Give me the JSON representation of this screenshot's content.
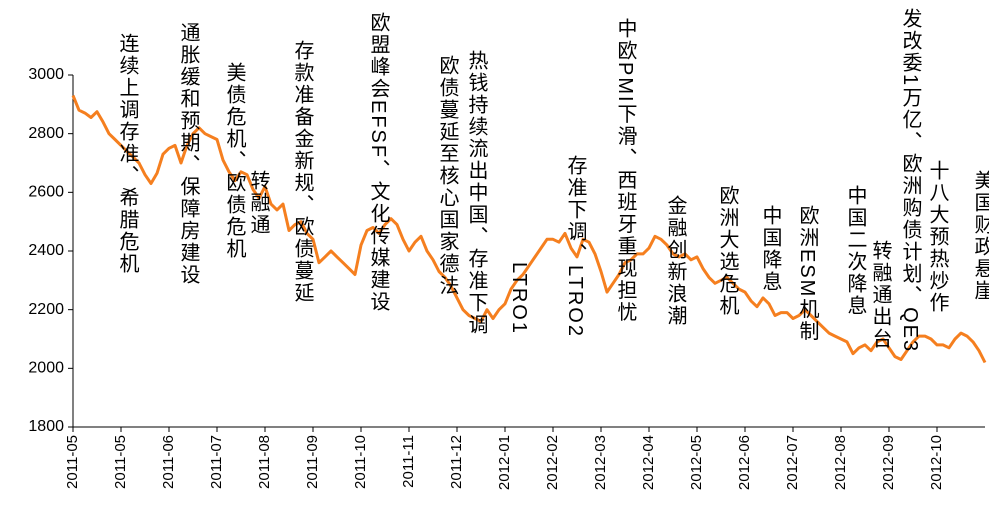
{
  "chart_data": {
    "type": "line",
    "color": "#f57f1f",
    "ylim": [
      1800,
      3000
    ],
    "yticks": [
      1800,
      2000,
      2200,
      2400,
      2600,
      2800,
      3000
    ],
    "categories": [
      "2011-05",
      null,
      null,
      null,
      null,
      null,
      null,
      null,
      "2011-05",
      null,
      null,
      null,
      null,
      null,
      null,
      null,
      "2011-06",
      null,
      null,
      null,
      null,
      null,
      null,
      null,
      "2011-07",
      null,
      null,
      null,
      null,
      null,
      null,
      null,
      "2011-08",
      null,
      null,
      null,
      null,
      null,
      null,
      null,
      "2011-09",
      null,
      null,
      null,
      null,
      null,
      null,
      null,
      "2011-10",
      null,
      null,
      null,
      null,
      null,
      null,
      null,
      "2011-11",
      null,
      null,
      null,
      null,
      null,
      null,
      null,
      "2011-12",
      null,
      null,
      null,
      null,
      null,
      null,
      null,
      "2012-01",
      null,
      null,
      null,
      null,
      null,
      null,
      null,
      "2012-02",
      null,
      null,
      null,
      null,
      null,
      null,
      null,
      "2012-03",
      null,
      null,
      null,
      null,
      null,
      null,
      null,
      "2012-04",
      null,
      null,
      null,
      null,
      null,
      null,
      null,
      "2012-05",
      null,
      null,
      null,
      null,
      null,
      null,
      null,
      "2012-06",
      null,
      null,
      null,
      null,
      null,
      null,
      null,
      "2012-07",
      null,
      null,
      null,
      null,
      null,
      null,
      null,
      "2012-08",
      null,
      null,
      null,
      null,
      null,
      null,
      null,
      "2012-09",
      null,
      null,
      null,
      null,
      null,
      null,
      null,
      "2012-10",
      null,
      null,
      null,
      null,
      null,
      null,
      null,
      null
    ],
    "values": [
      2930,
      2880,
      2870,
      2855,
      2875,
      2840,
      2800,
      2780,
      2760,
      2740,
      2720,
      2700,
      2660,
      2630,
      2665,
      2730,
      2750,
      2760,
      2700,
      2760,
      2800,
      2820,
      2800,
      2790,
      2780,
      2710,
      2670,
      2640,
      2670,
      2660,
      2610,
      2580,
      2620,
      2560,
      2540,
      2560,
      2470,
      2490,
      2500,
      2460,
      2440,
      2360,
      2380,
      2400,
      2380,
      2360,
      2340,
      2320,
      2420,
      2470,
      2480,
      2460,
      2490,
      2510,
      2490,
      2440,
      2400,
      2430,
      2450,
      2400,
      2370,
      2330,
      2310,
      2280,
      2240,
      2200,
      2180,
      2170,
      2160,
      2200,
      2170,
      2200,
      2220,
      2270,
      2300,
      2320,
      2350,
      2380,
      2410,
      2440,
      2440,
      2430,
      2460,
      2410,
      2380,
      2440,
      2430,
      2390,
      2330,
      2260,
      2290,
      2320,
      2360,
      2370,
      2390,
      2390,
      2410,
      2450,
      2440,
      2420,
      2390,
      2380,
      2390,
      2370,
      2380,
      2340,
      2310,
      2290,
      2300,
      2310,
      2290,
      2270,
      2260,
      2230,
      2210,
      2240,
      2220,
      2180,
      2190,
      2190,
      2170,
      2180,
      2200,
      2180,
      2160,
      2140,
      2120,
      2110,
      2100,
      2090,
      2050,
      2070,
      2080,
      2060,
      2090,
      2100,
      2070,
      2040,
      2030,
      2060,
      2090,
      2110,
      2110,
      2100,
      2080,
      2080,
      2070,
      2100,
      2120,
      2110,
      2090,
      2060,
      2020
    ],
    "annotations": [
      "连续上调存准、希腊危机",
      "通胀缓和预期、保障房建设",
      "美债危机、欧债危机",
      "转融通",
      "存款准备金新规、欧债蔓延",
      "欧盟峰会EFSF、文化传媒建设",
      "欧债蔓延至核心国家德法",
      "热钱持续流出中国、存准下调",
      "LTRO1",
      "存准下调、LTRO2",
      "中欧PMI下滑、西班牙重现担忧",
      "金融创新浪潮",
      "欧洲大选危机",
      "中国降息",
      "欧洲ESM机制",
      "中国二次降息",
      "转融通出台",
      "发改委1万亿、欧洲购债计划、QE3",
      "十八大预热炒作",
      "美国财政悬崖"
    ]
  }
}
